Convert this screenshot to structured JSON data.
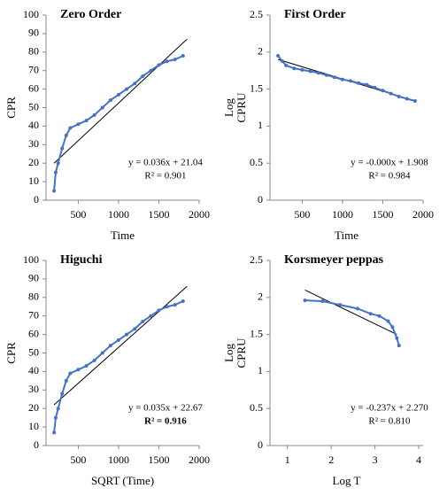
{
  "chart_data": [
    {
      "type": "line",
      "title": "Zero Order",
      "ylabel": [
        "CPR"
      ],
      "xlabel": "Time",
      "xlim": [
        100,
        2000
      ],
      "xticks": [
        500,
        1000,
        1500,
        2000
      ],
      "ylim": [
        0,
        100
      ],
      "yticks": [
        0,
        10,
        20,
        30,
        40,
        50,
        60,
        70,
        80,
        90,
        100
      ],
      "color": "#4472c4",
      "trend_color": "#000000",
      "x": [
        200,
        220,
        250,
        300,
        350,
        400,
        500,
        600,
        700,
        800,
        900,
        1000,
        1100,
        1200,
        1300,
        1400,
        1500,
        1600,
        1700,
        1800
      ],
      "values": [
        5,
        15,
        20,
        28,
        35,
        39,
        41,
        43,
        46,
        50,
        54,
        57,
        60,
        63,
        67,
        70,
        73,
        75,
        76,
        78
      ],
      "trend": {
        "x": [
          200,
          1850
        ],
        "values": [
          20,
          87
        ]
      },
      "annotations": [
        "y = 0.036x + 21.04",
        "R² = 0.901"
      ],
      "annotation_bold": false
    },
    {
      "type": "line",
      "title": "First Order",
      "ylabel": [
        "Log",
        "CPRU"
      ],
      "xlabel": "Time",
      "xlim": [
        100,
        2000
      ],
      "xticks": [
        500,
        1000,
        1500,
        2000
      ],
      "ylim": [
        0,
        2.5
      ],
      "yticks": [
        0,
        0.5,
        1,
        1.5,
        2,
        2.5
      ],
      "color": "#4472c4",
      "trend_color": "#000000",
      "x": [
        200,
        250,
        300,
        400,
        500,
        600,
        700,
        800,
        900,
        1000,
        1100,
        1200,
        1300,
        1400,
        1500,
        1600,
        1700,
        1800,
        1900
      ],
      "values": [
        1.95,
        1.88,
        1.82,
        1.78,
        1.76,
        1.74,
        1.72,
        1.69,
        1.66,
        1.63,
        1.61,
        1.58,
        1.56,
        1.52,
        1.48,
        1.44,
        1.4,
        1.37,
        1.34
      ],
      "trend": {
        "x": [
          200,
          1900
        ],
        "values": [
          1.9,
          1.34
        ]
      },
      "annotations": [
        "y = -0.000x + 1.908",
        "R² = 0.984"
      ],
      "annotation_bold": false
    },
    {
      "type": "line",
      "title": "Higuchi",
      "ylabel": [
        "CPR"
      ],
      "xlabel": "SQRT (Time)",
      "xlim": [
        100,
        2000
      ],
      "xticks": [
        500,
        1000,
        1500,
        2000
      ],
      "ylim": [
        0,
        100
      ],
      "yticks": [
        0,
        10,
        20,
        30,
        40,
        50,
        60,
        70,
        80,
        90,
        100
      ],
      "color": "#4472c4",
      "trend_color": "#000000",
      "x": [
        200,
        220,
        250,
        300,
        350,
        400,
        500,
        600,
        700,
        800,
        900,
        1000,
        1100,
        1200,
        1300,
        1400,
        1500,
        1600,
        1700,
        1800
      ],
      "values": [
        7,
        15,
        20,
        28,
        35,
        39,
        41,
        43,
        46,
        50,
        54,
        57,
        60,
        63,
        67,
        70,
        73,
        75,
        76,
        78
      ],
      "trend": {
        "x": [
          200,
          1850
        ],
        "values": [
          22,
          86
        ]
      },
      "annotations": [
        "y = 0.035x + 22.67",
        "R² = 0.916"
      ],
      "annotation_bold": true
    },
    {
      "type": "line",
      "title": "Korsmeyer peppas",
      "ylabel": [
        "Log",
        "CPRU"
      ],
      "xlabel": "Log T",
      "xlim": [
        0.6,
        4.1
      ],
      "xticks": [
        1,
        2,
        3,
        4
      ],
      "ylim": [
        0,
        2.5
      ],
      "yticks": [
        0,
        0.5,
        1,
        1.5,
        2,
        2.5
      ],
      "color": "#4472c4",
      "trend_color": "#000000",
      "x": [
        1.4,
        1.8,
        2.2,
        2.6,
        2.9,
        3.1,
        3.3,
        3.4,
        3.5,
        3.55
      ],
      "values": [
        1.96,
        1.95,
        1.9,
        1.85,
        1.78,
        1.75,
        1.68,
        1.6,
        1.45,
        1.35
      ],
      "trend": {
        "x": [
          1.4,
          3.5
        ],
        "values": [
          2.1,
          1.5
        ]
      },
      "annotations": [
        "y = -0.237x + 2.270",
        "R² = 0.810"
      ],
      "annotation_bold": false
    }
  ]
}
